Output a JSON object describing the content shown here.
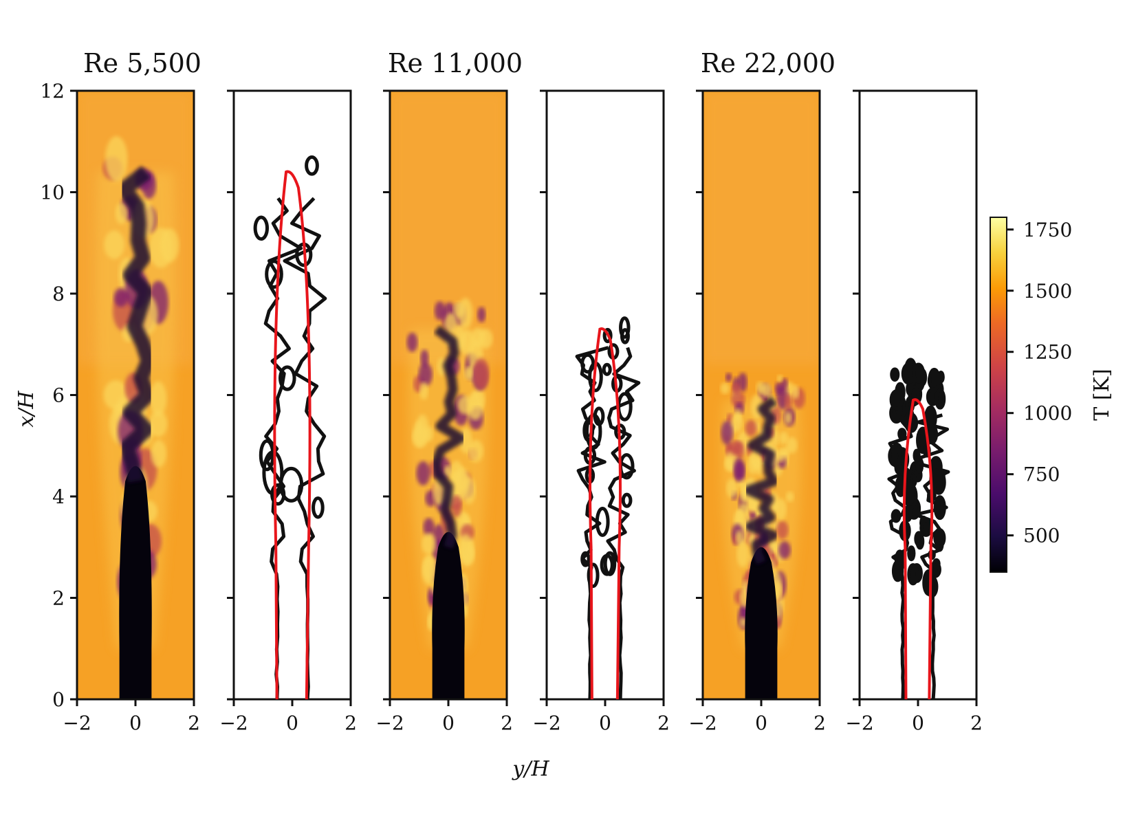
{
  "chart_data": {
    "type": "heatmap",
    "description_layout": "six panels: temperature field and flame contour for three Reynolds numbers",
    "xlabel": "y/H",
    "ylabel": "x/H",
    "xlim": [
      -2,
      2
    ],
    "ylim": [
      0,
      12
    ],
    "xticks": [
      "−2",
      "0",
      "2"
    ],
    "yticks": [
      "0",
      "2",
      "4",
      "6",
      "8",
      "10",
      "12"
    ],
    "colorbar": {
      "label": "T [K]",
      "range": [
        350,
        1800
      ],
      "ticks": [
        "500",
        "750",
        "1000",
        "1250",
        "1500",
        "1750"
      ],
      "tick_values": [
        500,
        750,
        1000,
        1250,
        1500,
        1750
      ],
      "colormap": [
        "#000004",
        "#1b0c41",
        "#4a0c6b",
        "#781c6d",
        "#a52c60",
        "#cf4446",
        "#ed6925",
        "#fb9b06",
        "#f7d13d",
        "#fcffa4"
      ]
    },
    "cases": [
      {
        "title": "Re 5,500",
        "jet_half_width": 0.55,
        "core_length": 4.3,
        "flame_tip": 10.4,
        "red_contour_width": 0.7
      },
      {
        "title": "Re 11,000",
        "jet_half_width": 0.55,
        "core_length": 3.0,
        "flame_tip": 7.3,
        "red_contour_width": 0.6
      },
      {
        "title": "Re 22,000",
        "jet_half_width": 0.55,
        "core_length": 2.7,
        "flame_tip": 5.9,
        "red_contour_width": 0.55
      }
    ],
    "contour_colors": {
      "mean": "#e8151b",
      "instantaneous": "#111111"
    }
  }
}
